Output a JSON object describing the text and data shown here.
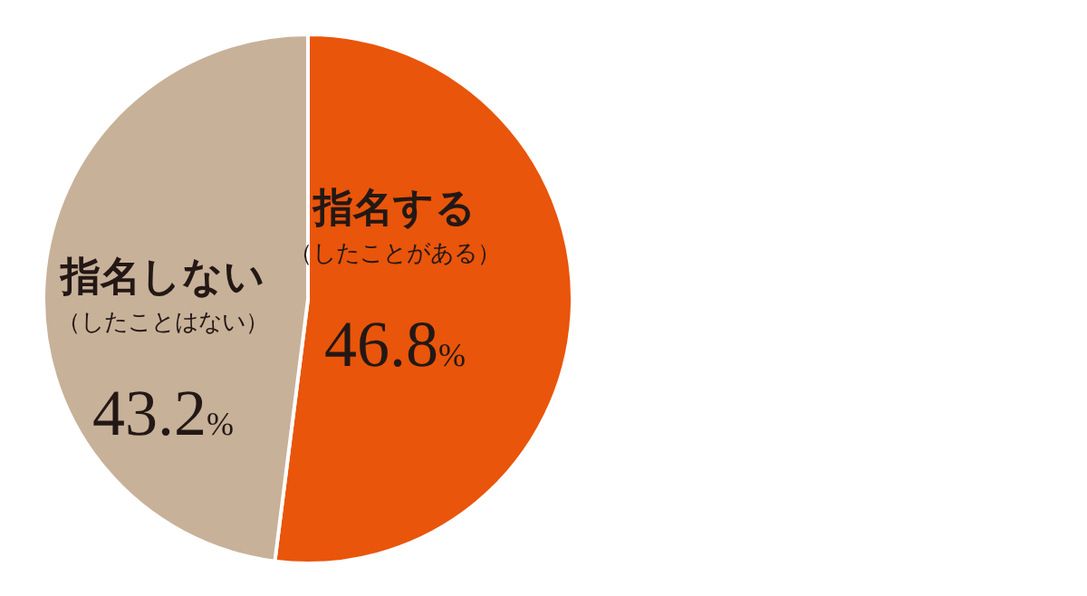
{
  "chart_data": {
    "type": "pie",
    "categories": [
      "指名する（したことがある）",
      "指名しない（したことはない）"
    ],
    "values": [
      46.8,
      43.2
    ],
    "colors": [
      "#e9550a",
      "#c8b199"
    ],
    "value_labels": [
      "46.8%",
      "43.2%"
    ]
  }
}
